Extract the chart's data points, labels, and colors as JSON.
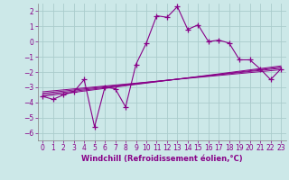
{
  "xlabel": "Windchill (Refroidissement éolien,°C)",
  "background_color": "#cce8e8",
  "grid_color": "#aacccc",
  "line_color": "#880088",
  "xlim": [
    -0.5,
    23.5
  ],
  "ylim": [
    -6.5,
    2.5
  ],
  "xticks": [
    0,
    1,
    2,
    3,
    4,
    5,
    6,
    7,
    8,
    9,
    10,
    11,
    12,
    13,
    14,
    15,
    16,
    17,
    18,
    19,
    20,
    21,
    22,
    23
  ],
  "yticks": [
    -6,
    -5,
    -4,
    -3,
    -2,
    -1,
    0,
    1,
    2
  ],
  "main_data_x": [
    0,
    1,
    2,
    3,
    4,
    5,
    6,
    7,
    8,
    9,
    10,
    11,
    12,
    13,
    14,
    15,
    16,
    17,
    18,
    19,
    20,
    21,
    22,
    23
  ],
  "main_data_y": [
    -3.6,
    -3.8,
    -3.5,
    -3.3,
    -2.5,
    -5.6,
    -3.0,
    -3.1,
    -4.3,
    -1.5,
    -0.1,
    1.7,
    1.6,
    2.3,
    0.8,
    1.1,
    0.0,
    0.1,
    -0.1,
    -1.2,
    -1.2,
    -1.8,
    -2.5,
    -1.8
  ],
  "trend_lines": [
    {
      "x": [
        0,
        23
      ],
      "y": [
        -3.6,
        -1.6
      ]
    },
    {
      "x": [
        0,
        23
      ],
      "y": [
        -3.4,
        -1.75
      ]
    },
    {
      "x": [
        0,
        23
      ],
      "y": [
        -3.5,
        -1.68
      ]
    },
    {
      "x": [
        0,
        23
      ],
      "y": [
        -3.3,
        -1.85
      ]
    }
  ],
  "tick_fontsize": 5.5,
  "xlabel_fontsize": 6.0
}
